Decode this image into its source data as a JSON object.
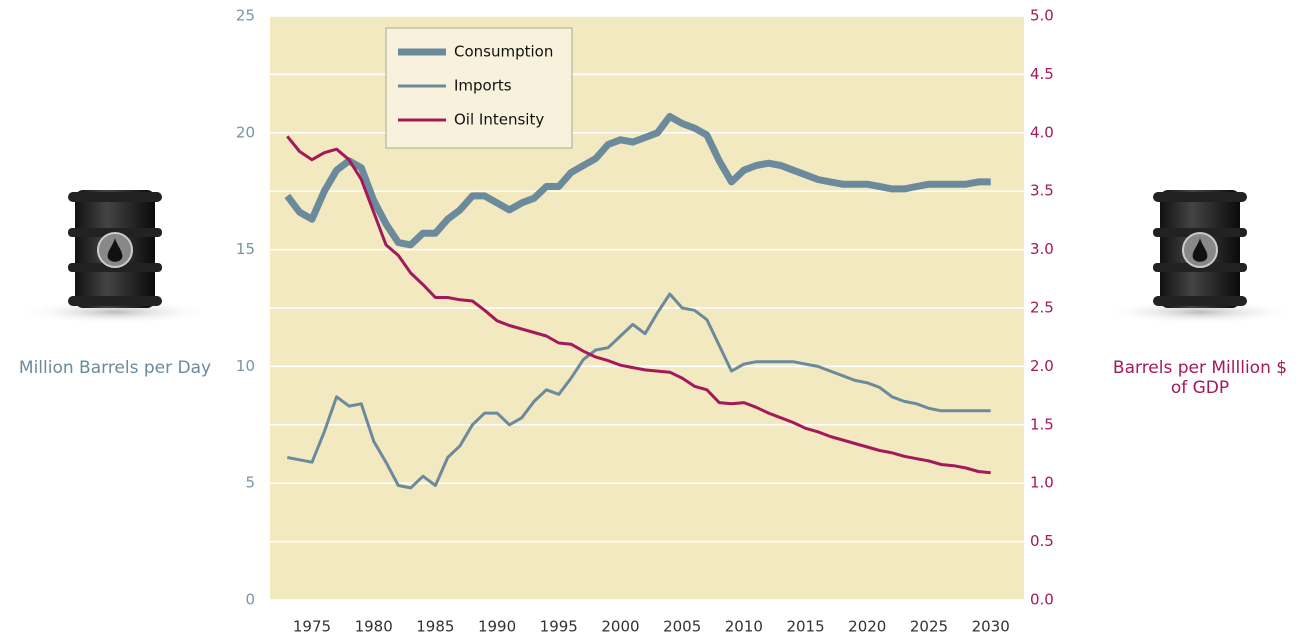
{
  "chart_data": {
    "type": "line",
    "y_label": "Million Barrels per Day",
    "y2_label": "Barrels per Milllion $ of GDP",
    "x": [
      1973,
      1974,
      1975,
      1976,
      1977,
      1978,
      1979,
      1980,
      1981,
      1982,
      1983,
      1984,
      1985,
      1986,
      1987,
      1988,
      1989,
      1990,
      1991,
      1992,
      1993,
      1994,
      1995,
      1996,
      1997,
      1998,
      1999,
      2000,
      2001,
      2002,
      2003,
      2004,
      2005,
      2006,
      2007,
      2008,
      2009,
      2010,
      2011,
      2012,
      2013,
      2014,
      2015,
      2016,
      2017,
      2018,
      2019,
      2020,
      2021,
      2022,
      2023,
      2024,
      2025,
      2026,
      2027,
      2028,
      2029,
      2030
    ],
    "series": [
      {
        "name": "Consumption",
        "color": "#6b8a9c",
        "values": [
          17.3,
          16.6,
          16.3,
          17.5,
          18.4,
          18.8,
          18.5,
          17.1,
          16.1,
          15.3,
          15.2,
          15.7,
          15.7,
          16.3,
          16.7,
          17.3,
          17.3,
          17.0,
          16.7,
          17.0,
          17.2,
          17.7,
          17.7,
          18.3,
          18.6,
          18.9,
          19.5,
          19.7,
          19.6,
          19.8,
          20.0,
          20.7,
          20.4,
          20.2,
          19.9,
          18.8,
          17.9,
          18.4,
          18.6,
          18.7,
          18.6,
          18.4,
          18.2,
          18.0,
          17.9,
          17.8,
          17.8,
          17.8,
          17.7,
          17.6,
          17.6,
          17.7,
          17.8,
          17.8,
          17.8,
          17.8,
          17.9,
          17.9
        ]
      },
      {
        "name": "Imports",
        "color": "#6b8a9c",
        "values": [
          6.1,
          6.0,
          5.9,
          7.2,
          8.7,
          8.3,
          8.4,
          6.8,
          5.9,
          4.9,
          4.8,
          5.3,
          4.9,
          6.1,
          6.6,
          7.5,
          8.0,
          8.0,
          7.5,
          7.8,
          8.5,
          9.0,
          8.8,
          9.5,
          10.3,
          10.7,
          10.8,
          11.3,
          11.8,
          11.4,
          12.3,
          13.1,
          12.5,
          12.4,
          12.0,
          10.9,
          9.8,
          10.1,
          10.2,
          10.2,
          10.2,
          10.2,
          10.1,
          10.0,
          9.8,
          9.6,
          9.4,
          9.3,
          9.1,
          8.7,
          8.5,
          8.4,
          8.2,
          8.1,
          8.1,
          8.1,
          8.1,
          8.1
        ]
      },
      {
        "name": "Oil Intensity",
        "color": "#a3195b",
        "axis": "y2",
        "values": [
          3.97,
          3.84,
          3.77,
          3.83,
          3.86,
          3.77,
          3.6,
          3.32,
          3.04,
          2.95,
          2.8,
          2.7,
          2.59,
          2.59,
          2.57,
          2.56,
          2.48,
          2.39,
          2.35,
          2.32,
          2.29,
          2.26,
          2.2,
          2.19,
          2.13,
          2.08,
          2.05,
          2.01,
          1.99,
          1.97,
          1.96,
          1.95,
          1.9,
          1.83,
          1.8,
          1.69,
          1.68,
          1.69,
          1.65,
          1.6,
          1.56,
          1.52,
          1.47,
          1.44,
          1.4,
          1.37,
          1.34,
          1.31,
          1.28,
          1.26,
          1.23,
          1.21,
          1.19,
          1.16,
          1.15,
          1.13,
          1.1,
          1.09
        ]
      }
    ],
    "xlim": [
      1971.6,
      2032.7
    ],
    "xticks": [
      1975,
      1980,
      1985,
      1990,
      1995,
      2000,
      2005,
      2010,
      2015,
      2020,
      2025,
      2030
    ],
    "ylim": [
      0,
      25
    ],
    "yticks": [
      0,
      5,
      10,
      15,
      20,
      25
    ],
    "y2lim": [
      0,
      5
    ],
    "y2ticks": [
      {
        "value": 0,
        "label": "0.0"
      },
      0.5,
      {
        "value": 1,
        "label": "1.0"
      },
      1.5,
      {
        "value": 2,
        "label": "2.0"
      },
      2.5,
      {
        "value": 3,
        "label": "3.0"
      },
      3.5,
      {
        "value": 4,
        "label": "4.0"
      },
      4.5,
      {
        "value": 5,
        "label": "5.0"
      }
    ],
    "grid": true
  }
}
